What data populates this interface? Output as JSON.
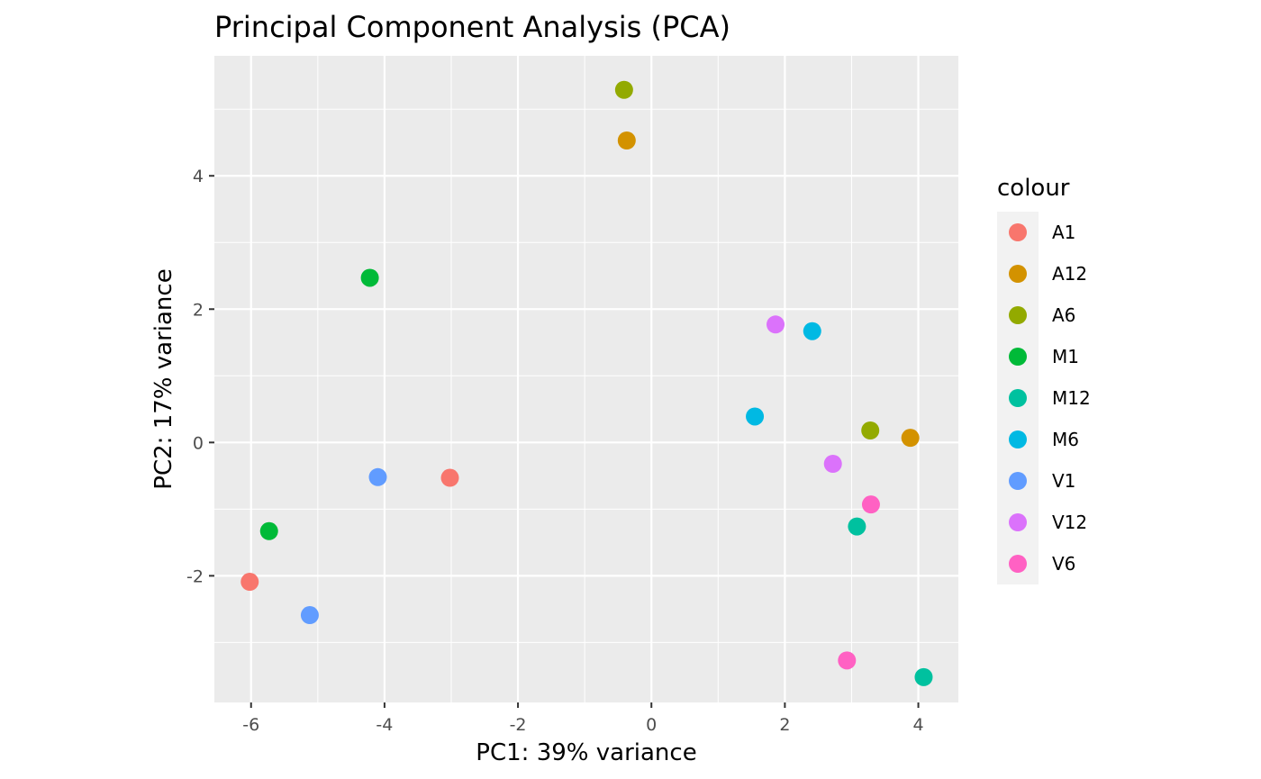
{
  "chart_data": {
    "type": "scatter",
    "title": "Principal Component Analysis (PCA)",
    "xlabel": "PC1: 39% variance",
    "ylabel": "PC2: 17% variance",
    "xlim": [
      -6.55,
      4.6
    ],
    "ylim": [
      -3.9,
      5.8
    ],
    "xticks": [
      -6,
      -4,
      -2,
      0,
      2,
      4
    ],
    "xtick_labels": [
      "-6",
      "-4",
      "-2",
      "0",
      "2",
      "4"
    ],
    "yticks": [
      -2,
      0,
      2,
      4
    ],
    "ytick_labels": [
      "-2",
      "0",
      "2",
      "4"
    ],
    "grid": true,
    "legend": {
      "title": "colour",
      "position": "right"
    },
    "series": [
      {
        "name": "A1",
        "color": "#F8766D",
        "points": [
          {
            "x": -6.02,
            "y": -2.09
          },
          {
            "x": -3.02,
            "y": -0.53
          }
        ]
      },
      {
        "name": "A12",
        "color": "#D39200",
        "points": [
          {
            "x": -0.37,
            "y": 4.53
          },
          {
            "x": 3.88,
            "y": 0.07
          }
        ]
      },
      {
        "name": "A6",
        "color": "#93AA00",
        "points": [
          {
            "x": -0.41,
            "y": 5.29
          },
          {
            "x": 3.28,
            "y": 0.18
          }
        ]
      },
      {
        "name": "M1",
        "color": "#00BA38",
        "points": [
          {
            "x": -4.22,
            "y": 2.47
          },
          {
            "x": -5.73,
            "y": -1.33
          }
        ]
      },
      {
        "name": "M12",
        "color": "#00C19F",
        "points": [
          {
            "x": 3.08,
            "y": -1.26
          },
          {
            "x": 4.08,
            "y": -3.52
          }
        ]
      },
      {
        "name": "M6",
        "color": "#00B9E3",
        "points": [
          {
            "x": 2.41,
            "y": 1.67
          },
          {
            "x": 1.55,
            "y": 0.39
          }
        ]
      },
      {
        "name": "V1",
        "color": "#619CFF",
        "points": [
          {
            "x": -4.1,
            "y": -0.52
          },
          {
            "x": -5.12,
            "y": -2.59
          }
        ]
      },
      {
        "name": "V12",
        "color": "#DB72FB",
        "points": [
          {
            "x": 1.86,
            "y": 1.77
          },
          {
            "x": 2.72,
            "y": -0.32
          }
        ]
      },
      {
        "name": "V6",
        "color": "#FF61C3",
        "points": [
          {
            "x": 3.29,
            "y": -0.93
          },
          {
            "x": 2.93,
            "y": -3.27
          }
        ]
      }
    ]
  },
  "colors": {
    "panel_background": "#EBEBEB",
    "grid_line": "#FFFFFF",
    "legend_key_background": "#F2F2F2"
  }
}
